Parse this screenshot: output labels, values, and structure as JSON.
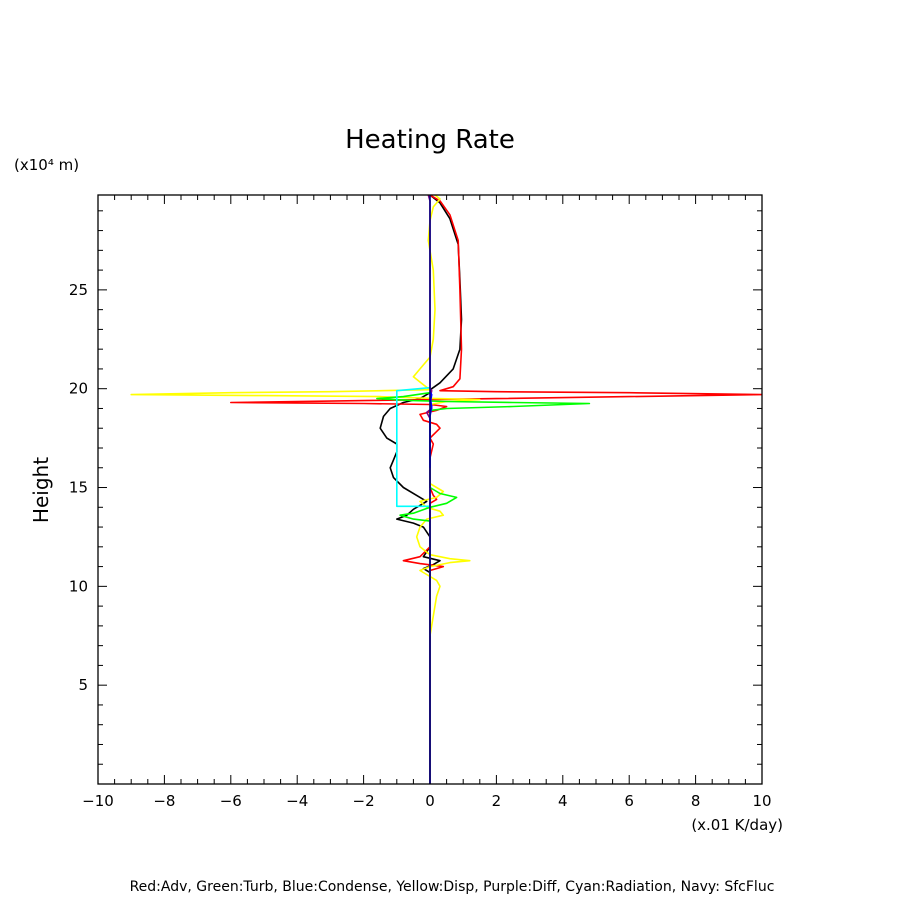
{
  "chart_data": {
    "type": "line",
    "title": "Heating Rate",
    "ylabel": "Height",
    "yunit": "(x10⁴ m)",
    "xunit": "(x.01 K/day)",
    "xlim": [
      -10,
      10
    ],
    "ylim": [
      0,
      29.8
    ],
    "xticks": [
      -10,
      -8,
      -6,
      -4,
      -2,
      0,
      2,
      4,
      6,
      8,
      10
    ],
    "xtick_labels": [
      "−10",
      "−8",
      "−6",
      "−4",
      "−2",
      "0",
      "2",
      "4",
      "6",
      "8",
      "10"
    ],
    "yticks": [
      5,
      10,
      15,
      20,
      25
    ],
    "ytick_labels": [
      "5",
      "10",
      "15",
      "20",
      "25"
    ],
    "grid": false,
    "legend_text": "Red:Adv, Green:Turb, Blue:Condense, Yellow:Disp, Purple:Diff, Cyan:Radiation, Navy: SfcFluc",
    "series": [
      {
        "color": "#000000",
        "points": [
          [
            0,
            29.8
          ],
          [
            0.3,
            29.4
          ],
          [
            0.6,
            28.6
          ],
          [
            0.85,
            27.3
          ],
          [
            0.9,
            25.5
          ],
          [
            0.95,
            23.5
          ],
          [
            0.9,
            22.0
          ],
          [
            0.7,
            21.0
          ],
          [
            0.3,
            20.3
          ],
          [
            0.05,
            20.0
          ],
          [
            0,
            19.8
          ],
          [
            -0.3,
            19.5
          ],
          [
            -0.8,
            19.3
          ],
          [
            -1.2,
            19.0
          ],
          [
            -1.4,
            18.6
          ],
          [
            -1.5,
            18.0
          ],
          [
            -1.3,
            17.5
          ],
          [
            -1.0,
            17.2
          ],
          [
            -1.0,
            16.8
          ],
          [
            -1.1,
            16.4
          ],
          [
            -1.2,
            16.0
          ],
          [
            -1.1,
            15.5
          ],
          [
            -0.8,
            15.0
          ],
          [
            -0.4,
            14.6
          ],
          [
            -0.1,
            14.3
          ],
          [
            -0.5,
            13.9
          ],
          [
            -0.7,
            13.6
          ],
          [
            -1.0,
            13.4
          ],
          [
            -0.5,
            13.2
          ],
          [
            -0.2,
            13.0
          ],
          [
            0,
            12.5
          ],
          [
            0,
            12.0
          ],
          [
            -0.2,
            11.5
          ],
          [
            0.3,
            11.3
          ],
          [
            0.1,
            11.1
          ],
          [
            -0.2,
            10.9
          ],
          [
            0,
            10.7
          ],
          [
            0,
            10.0
          ],
          [
            0,
            8.0
          ],
          [
            0,
            0
          ]
        ]
      },
      {
        "color": "#ff0000",
        "points": [
          [
            0,
            29.8
          ],
          [
            0.3,
            29.5
          ],
          [
            0.6,
            28.8
          ],
          [
            0.85,
            27.5
          ],
          [
            0.9,
            25.0
          ],
          [
            0.95,
            22.0
          ],
          [
            0.9,
            20.5
          ],
          [
            0.7,
            20.1
          ],
          [
            0.3,
            19.9
          ],
          [
            2.0,
            19.85
          ],
          [
            6.0,
            19.8
          ],
          [
            10.0,
            19.7
          ],
          [
            6.0,
            19.6
          ],
          [
            2.0,
            19.5
          ],
          [
            -2.0,
            19.4
          ],
          [
            -6.0,
            19.3
          ],
          [
            -2.0,
            19.25
          ],
          [
            0,
            19.2
          ],
          [
            0.5,
            19.1
          ],
          [
            0.2,
            18.9
          ],
          [
            -0.3,
            18.7
          ],
          [
            -0.2,
            18.4
          ],
          [
            0.2,
            18.2
          ],
          [
            0.3,
            18.0
          ],
          [
            0,
            17.5
          ],
          [
            0.1,
            17.2
          ],
          [
            0,
            16.5
          ],
          [
            0,
            15.0
          ],
          [
            0.1,
            14.6
          ],
          [
            0.2,
            14.4
          ],
          [
            0,
            14.2
          ],
          [
            0,
            12.0
          ],
          [
            -0.3,
            11.5
          ],
          [
            -0.8,
            11.3
          ],
          [
            -0.3,
            11.15
          ],
          [
            0.4,
            11.0
          ],
          [
            0,
            10.8
          ],
          [
            0,
            0
          ]
        ]
      },
      {
        "color": "#ffff00",
        "points": [
          [
            0,
            30.0
          ],
          [
            0.15,
            29.8
          ],
          [
            0.3,
            29.6
          ],
          [
            0.1,
            29.2
          ],
          [
            0,
            28.5
          ],
          [
            -0.05,
            27.5
          ],
          [
            0.1,
            26.0
          ],
          [
            0.15,
            24.0
          ],
          [
            0.1,
            22.5
          ],
          [
            0,
            21.6
          ],
          [
            -0.3,
            21.0
          ],
          [
            -0.5,
            20.6
          ],
          [
            -0.2,
            20.2
          ],
          [
            0,
            19.95
          ],
          [
            -3,
            19.85
          ],
          [
            -6,
            19.8
          ],
          [
            -9,
            19.7
          ],
          [
            -5,
            19.65
          ],
          [
            -1.5,
            19.6
          ],
          [
            0.2,
            19.5
          ],
          [
            1.5,
            19.45
          ],
          [
            0.5,
            19.35
          ],
          [
            0,
            19.2
          ],
          [
            0,
            15.2
          ],
          [
            0.4,
            14.8
          ],
          [
            0.2,
            14.5
          ],
          [
            -0.3,
            14.3
          ],
          [
            -0.1,
            14.0
          ],
          [
            0.3,
            13.8
          ],
          [
            0.4,
            13.6
          ],
          [
            -0.1,
            13.4
          ],
          [
            -0.3,
            13.0
          ],
          [
            -0.4,
            12.5
          ],
          [
            -0.3,
            12.0
          ],
          [
            0,
            11.6
          ],
          [
            0.6,
            11.4
          ],
          [
            1.2,
            11.3
          ],
          [
            0.6,
            11.2
          ],
          [
            0,
            11.0
          ],
          [
            -0.3,
            10.8
          ],
          [
            -0.1,
            10.6
          ],
          [
            0.2,
            10.3
          ],
          [
            0.3,
            10.0
          ],
          [
            0.2,
            9.5
          ],
          [
            0.1,
            8.5
          ],
          [
            0,
            7.5
          ]
        ]
      },
      {
        "color": "#00ff00",
        "points": [
          [
            0,
            19.8
          ],
          [
            -0.8,
            19.6
          ],
          [
            -1.6,
            19.5
          ],
          [
            -0.5,
            19.4
          ],
          [
            0.5,
            19.35
          ],
          [
            2.5,
            19.3
          ],
          [
            4.8,
            19.25
          ],
          [
            2.5,
            19.1
          ],
          [
            0.5,
            19.0
          ],
          [
            0,
            18.9
          ],
          [
            0,
            15.0
          ],
          [
            0.3,
            14.7
          ],
          [
            0.8,
            14.5
          ],
          [
            0.5,
            14.2
          ],
          [
            0,
            14.0
          ],
          [
            -0.5,
            13.7
          ],
          [
            -0.9,
            13.6
          ],
          [
            -0.5,
            13.4
          ],
          [
            0,
            13.3
          ],
          [
            0,
            0
          ]
        ]
      },
      {
        "color": "#00ffff",
        "points": [
          [
            0,
            20.05
          ],
          [
            -1.0,
            19.9
          ],
          [
            -1.0,
            14.05
          ],
          [
            0,
            14.05
          ]
        ]
      },
      {
        "color": "#800080",
        "points": [
          [
            -0.05,
            29.8
          ],
          [
            0,
            29.5
          ],
          [
            0,
            20.0
          ],
          [
            0.05,
            19.9
          ],
          [
            0,
            19.5
          ],
          [
            0.05,
            19.0
          ],
          [
            -0.1,
            18.8
          ],
          [
            0,
            18.5
          ],
          [
            0,
            0
          ]
        ]
      },
      {
        "color": "#0000ff",
        "points": [
          [
            0,
            19.85
          ],
          [
            0.05,
            19.7
          ],
          [
            0.02,
            19.4
          ],
          [
            0.05,
            19.1
          ],
          [
            0,
            18.6
          ],
          [
            0,
            17.5
          ],
          [
            0,
            16.0
          ]
        ]
      },
      {
        "color": "#000080",
        "points": [
          [
            0,
            0
          ],
          [
            0,
            30.0
          ]
        ]
      }
    ]
  }
}
